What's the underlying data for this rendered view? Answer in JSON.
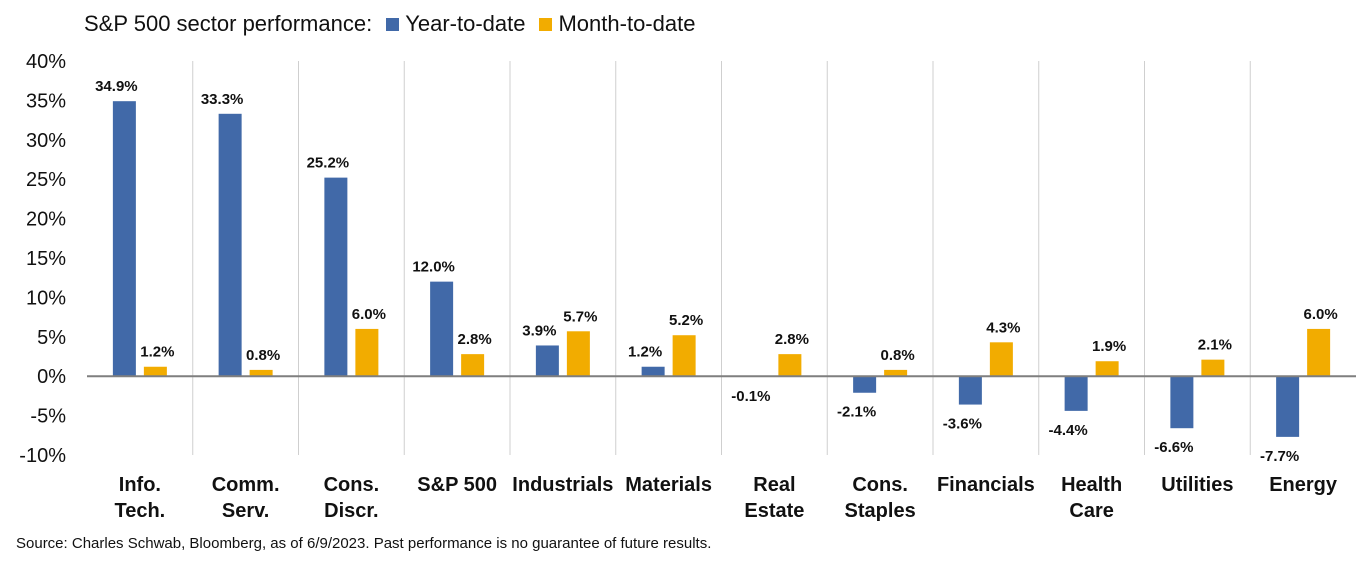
{
  "legend": {
    "title": "S&P 500 sector performance:",
    "series": [
      {
        "name": "Year-to-date",
        "color": "#4169a8"
      },
      {
        "name": "Month-to-date",
        "color": "#f2ac00"
      }
    ]
  },
  "source": "Source: Charles Schwab, Bloomberg, as of 6/9/2023. Past performance is no guarantee of future results.",
  "chart_data": {
    "type": "bar",
    "title": "S&P 500 sector performance:",
    "categories": [
      [
        "Info.",
        "Tech."
      ],
      [
        "Comm.",
        "Serv."
      ],
      [
        "Cons.",
        "Discr."
      ],
      [
        "S&P 500"
      ],
      [
        "Industrials"
      ],
      [
        "Materials"
      ],
      [
        "Real",
        "Estate"
      ],
      [
        "Cons.",
        "Staples"
      ],
      [
        "Financials"
      ],
      [
        "Health",
        "Care"
      ],
      [
        "Utilities"
      ],
      [
        "Energy"
      ]
    ],
    "series": [
      {
        "name": "Year-to-date",
        "color": "#4169a8",
        "values": [
          34.9,
          33.3,
          25.2,
          12.0,
          3.9,
          1.2,
          -0.1,
          -2.1,
          -3.6,
          -4.4,
          -6.6,
          -7.7
        ],
        "labels": [
          "34.9%",
          "33.3%",
          "25.2%",
          "12.0%",
          "3.9%",
          "1.2%",
          "-0.1%",
          "-2.1%",
          "-3.6%",
          "-4.4%",
          "-6.6%",
          "-7.7%"
        ]
      },
      {
        "name": "Month-to-date",
        "color": "#f2ac00",
        "values": [
          1.2,
          0.8,
          6.0,
          2.8,
          5.7,
          5.2,
          2.8,
          0.8,
          4.3,
          1.9,
          2.1,
          6.0
        ],
        "labels": [
          "1.2%",
          "0.8%",
          "6.0%",
          "2.8%",
          "5.7%",
          "5.2%",
          "2.8%",
          "0.8%",
          "4.3%",
          "1.9%",
          "2.1%",
          "6.0%"
        ]
      }
    ],
    "yticks": [
      "40%",
      "35%",
      "30%",
      "25%",
      "20%",
      "15%",
      "10%",
      "5%",
      "0%",
      "-5%",
      "-10%"
    ],
    "ylim": [
      -10,
      40
    ],
    "ytick_step": 5,
    "grid": "vertical separators between categories"
  }
}
